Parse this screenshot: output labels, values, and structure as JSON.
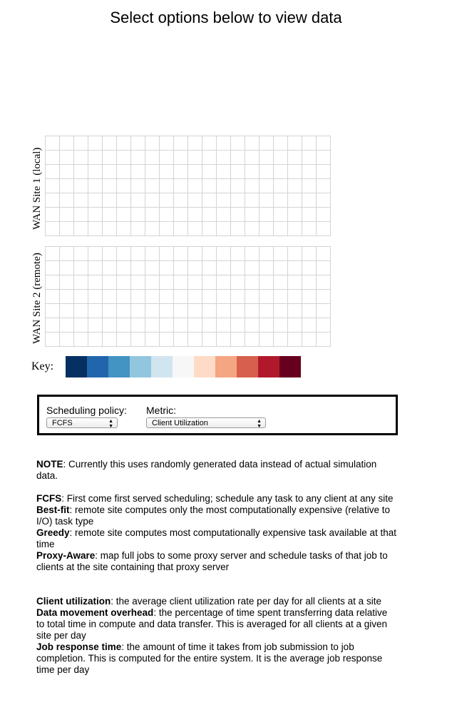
{
  "title": "Select options below to view data",
  "sites": [
    {
      "label": "WAN Site 1 (local)"
    },
    {
      "label": "WAN Site 2 (remote)"
    }
  ],
  "key": {
    "label": "Key:",
    "colors": [
      "#053061",
      "#2166ac",
      "#4393c3",
      "#92c5de",
      "#d1e5f0",
      "#f7f7f7",
      "#fddbc7",
      "#f4a582",
      "#d6604d",
      "#b2182b",
      "#67001f"
    ]
  },
  "controls": {
    "policy_label": "Scheduling policy:",
    "policy_value": "FCFS",
    "metric_label": "Metric:",
    "metric_value": "Client Utilization"
  },
  "notes": {
    "note": {
      "term": "NOTE",
      "text": ": Currently this uses randomly generated data instead of actual simulation data."
    },
    "policies": [
      {
        "term": "FCFS",
        "text": ": First come first served scheduling; schedule any task to any client at any site"
      },
      {
        "term": "Best-fit",
        "text": ": remote site computes only the most computationally expensive (relative to I/O) task type"
      },
      {
        "term": "Greedy",
        "text": ": remote site computes most computationally expensive task available at that time"
      },
      {
        "term": "Proxy-Aware",
        "text": ": map full jobs to some proxy server and schedule tasks of that job to clients at the site containing that proxy server"
      }
    ],
    "metrics": [
      {
        "term": "Client utilization",
        "text": ": the average client utilization rate per day for all clients at a site"
      },
      {
        "term": "Data movement overhead",
        "text": ": the percentage of time spent transferring data relative to total time in compute and data transfer. This is averaged for all clients at a given site per day"
      },
      {
        "term": "Job response time",
        "text": ": the amount of time it takes from job submission to job completion. This is computed for the entire system. It is the average job response time per day"
      }
    ]
  }
}
